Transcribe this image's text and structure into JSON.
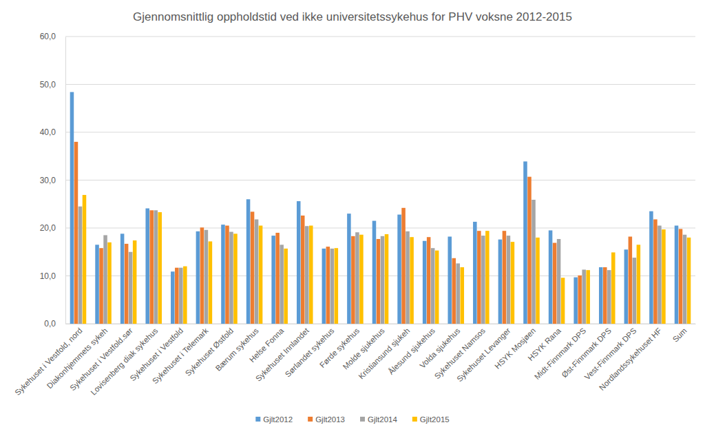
{
  "chart_data": {
    "type": "bar",
    "title": "Gjennomsnittlig oppholdstid ved ikke universitetssykehus for PHV voksne 2012-2015",
    "categories": [
      "Sykehuset i Vestfold, nord",
      "Diakonhjemmets sykeh",
      "Sykehuset i Vestfold.sør",
      "Lovisenberg diak sykehus",
      "Sykehuset i Vestfold",
      "Sykehuset i Telemark",
      "Sykehuset Østfold",
      "Bærum sykehus",
      "Helse Fonna",
      "Sykehuset Innlandet",
      "Sørlandet sykehus",
      "Førde sykehus",
      "Molde sjukehus",
      "Kristiansund sjukeh",
      "Ålesund sjukehus",
      "Volda sjukehus",
      "Sykehuset Namsos",
      "Sykehuset Levanger",
      "HSYK Mosjøen",
      "HSYK Rana",
      "Midt-Finnmark DPS",
      "Øst-Finnmark DPS",
      "Vest-Finnmark DPS",
      "Nordlandssykehuset HF",
      "Sum"
    ],
    "series": [
      {
        "name": "Gjlt2012",
        "color": "#5b9bd5",
        "values": [
          48.4,
          16.5,
          18.8,
          24.1,
          10.9,
          19.3,
          20.7,
          26.0,
          18.4,
          25.6,
          15.7,
          23.0,
          21.5,
          22.8,
          17.3,
          18.2,
          21.3,
          17.6,
          33.9,
          19.5,
          9.7,
          11.8,
          15.5,
          23.5,
          20.5
        ]
      },
      {
        "name": "Gjlt2013",
        "color": "#ed7d31",
        "values": [
          38.0,
          15.8,
          16.7,
          23.7,
          11.7,
          20.1,
          20.5,
          23.4,
          19.0,
          22.6,
          16.1,
          18.3,
          17.7,
          24.2,
          18.1,
          13.7,
          19.4,
          19.4,
          30.7,
          16.9,
          10.1,
          11.8,
          18.2,
          21.8,
          19.8
        ]
      },
      {
        "name": "Gjlt2014",
        "color": "#a5a5a5",
        "values": [
          24.5,
          18.5,
          15.0,
          23.7,
          11.7,
          19.6,
          19.2,
          21.8,
          16.5,
          20.4,
          15.7,
          19.1,
          18.3,
          19.3,
          15.8,
          12.6,
          18.4,
          18.4,
          25.9,
          17.7,
          11.3,
          11.2,
          13.8,
          20.5,
          18.6
        ]
      },
      {
        "name": "Gjlt2015",
        "color": "#ffc000",
        "values": [
          26.9,
          17.0,
          17.4,
          23.3,
          12.0,
          17.2,
          18.8,
          20.5,
          15.7,
          20.5,
          15.8,
          18.6,
          18.7,
          18.1,
          15.3,
          11.8,
          19.4,
          17.1,
          18.0,
          9.6,
          11.2,
          14.9,
          16.5,
          19.7,
          18.0
        ]
      }
    ],
    "ylim": [
      0,
      60
    ],
    "yticks": [
      {
        "value": 0,
        "label": "0,0"
      },
      {
        "value": 10,
        "label": "10,0"
      },
      {
        "value": 20,
        "label": "20,0"
      },
      {
        "value": 30,
        "label": "30,0"
      },
      {
        "value": 40,
        "label": "40,0"
      },
      {
        "value": 50,
        "label": "50,0"
      },
      {
        "value": 60,
        "label": "60,0"
      }
    ],
    "grid": true,
    "legend": "bottom"
  }
}
